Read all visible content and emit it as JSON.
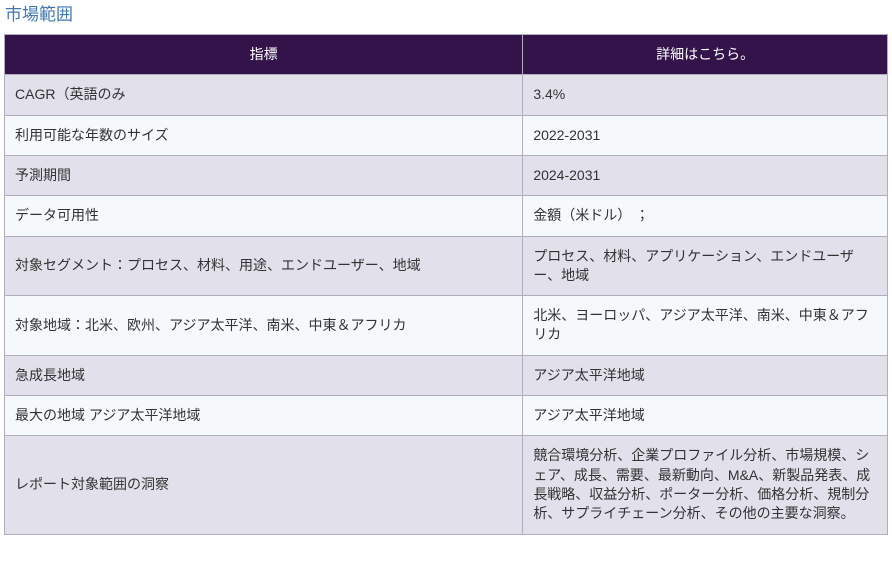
{
  "page": {
    "title": "市場範囲"
  },
  "table": {
    "headers": [
      "指標",
      "詳細はこちら。"
    ],
    "rows": [
      {
        "metric": "CAGR（英語のみ",
        "detail": "3.4%"
      },
      {
        "metric": "利用可能な年数のサイズ",
        "detail": "2022-2031"
      },
      {
        "metric": "予測期間",
        "detail": "2024-2031"
      },
      {
        "metric": "データ可用性",
        "detail": "金額（米ドル） ；"
      },
      {
        "metric": "対象セグメント：プロセス、材料、用途、エンドユーザー、地域",
        "detail": "プロセス、材料、アプリケーション、エンドユーザー、地域"
      },
      {
        "metric": "対象地域：北米、欧州、アジア太平洋、南米、中東＆アフリカ",
        "detail": "北米、ヨーロッパ、アジア太平洋、南米、中東＆アフリカ"
      },
      {
        "metric": "急成長地域",
        "detail": "アジア太平洋地域"
      },
      {
        "metric": "最大の地域 アジア太平洋地域",
        "detail": "アジア太平洋地域"
      },
      {
        "metric": "レポート対象範囲の洞察",
        "detail": "競合環境分析、企業プロファイル分析、市場規模、シェア、成長、需要、最新動向、M&A、新製品発表、成長戦略、収益分析、ポーター分析、価格分析、規制分析、サプライチェーン分析、その他の主要な洞察。"
      }
    ]
  },
  "colors": {
    "header_bg": "#331349",
    "header_text": "#ffffff",
    "row_odd_bg": "#e2e0ea",
    "row_even_bg": "#f5f9fb",
    "border": "#b0adbe",
    "title_color": "#4276b5",
    "cell_text": "#333333"
  }
}
